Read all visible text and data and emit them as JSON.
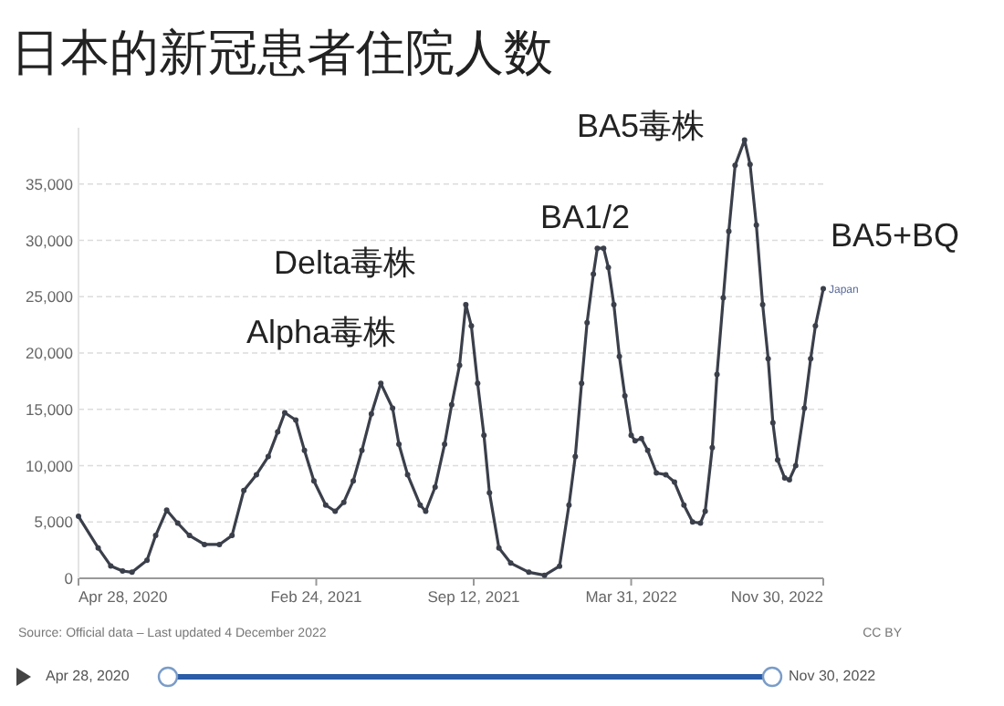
{
  "chart_data": {
    "type": "line",
    "title": "日本的新冠患者住院人数",
    "x": [
      "2020-04-28",
      "2020-05-23",
      "2020-06-08",
      "2020-06-23",
      "2020-07-05",
      "2020-07-24",
      "2020-08-04",
      "2020-08-18",
      "2020-09-01",
      "2020-09-16",
      "2020-10-05",
      "2020-10-24",
      "2020-11-09",
      "2020-11-24",
      "2020-12-10",
      "2020-12-25",
      "2021-01-06",
      "2021-01-15",
      "2021-01-29",
      "2021-02-09",
      "2021-02-21",
      "2021-03-08",
      "2021-03-20",
      "2021-03-31",
      "2021-04-12",
      "2021-04-23",
      "2021-05-05",
      "2021-05-17",
      "2021-06-01",
      "2021-06-09",
      "2021-06-20",
      "2021-07-06",
      "2021-07-13",
      "2021-07-25",
      "2021-08-06",
      "2021-08-15",
      "2021-08-25",
      "2021-09-02",
      "2021-09-09",
      "2021-09-17",
      "2021-09-25",
      "2021-10-02",
      "2021-10-14",
      "2021-10-29",
      "2021-11-21",
      "2021-12-11",
      "2021-12-30",
      "2022-01-11",
      "2022-01-19",
      "2022-01-27",
      "2022-02-03",
      "2022-02-11",
      "2022-02-16",
      "2022-02-24",
      "2022-03-02",
      "2022-03-09",
      "2022-03-16",
      "2022-03-23",
      "2022-03-31",
      "2022-04-05",
      "2022-04-13",
      "2022-04-21",
      "2022-05-02",
      "2022-05-14",
      "2022-05-25",
      "2022-06-06",
      "2022-06-17",
      "2022-06-27",
      "2022-07-03",
      "2022-07-12",
      "2022-07-18",
      "2022-07-26",
      "2022-08-02",
      "2022-08-10",
      "2022-08-22",
      "2022-08-29",
      "2022-09-06",
      "2022-09-14",
      "2022-09-21",
      "2022-09-27",
      "2022-10-03",
      "2022-10-12",
      "2022-10-18",
      "2022-10-26",
      "2022-11-06",
      "2022-11-14",
      "2022-11-20",
      "2022-11-30"
    ],
    "series": [
      {
        "name": "Japan",
        "color": "#3a3f4a",
        "values": [
          5500,
          2700,
          1100,
          650,
          540,
          1600,
          3800,
          6050,
          4900,
          3800,
          3000,
          3000,
          3800,
          7800,
          9200,
          10800,
          13000,
          14700,
          14050,
          11350,
          8650,
          6500,
          5950,
          6750,
          8650,
          11350,
          14600,
          17300,
          15100,
          11900,
          9200,
          6500,
          5950,
          8100,
          11900,
          15400,
          18900,
          24300,
          22400,
          17300,
          12700,
          7600,
          2700,
          1350,
          540,
          270,
          1080,
          6490,
          10800,
          17300,
          22700,
          27000,
          29300,
          29300,
          27600,
          24300,
          19700,
          16200,
          12700,
          12200,
          12400,
          11350,
          9350,
          9200,
          8540,
          6500,
          5000,
          4900,
          5950,
          11600,
          18100,
          24900,
          30800,
          36650,
          38900,
          36750,
          31350,
          24300,
          19500,
          13800,
          10500,
          8900,
          8750,
          10000,
          15100,
          19500,
          22400,
          25700
        ]
      }
    ],
    "xlim": [
      "2020-04-28",
      "2022-11-30"
    ],
    "xticks": [
      {
        "value": "2020-04-28",
        "label": "Apr 28, 2020"
      },
      {
        "value": "2021-02-24",
        "label": "Feb 24, 2021"
      },
      {
        "value": "2021-09-12",
        "label": "Sep 12, 2021"
      },
      {
        "value": "2022-03-31",
        "label": "Mar 31, 2022"
      },
      {
        "value": "2022-11-30",
        "label": "Nov 30, 2022"
      }
    ],
    "ylim": [
      0,
      40000
    ],
    "yticks": [
      {
        "value": 0,
        "label": "0"
      },
      {
        "value": 5000,
        "label": "5,000"
      },
      {
        "value": 10000,
        "label": "10,000"
      },
      {
        "value": 15000,
        "label": "15,000"
      },
      {
        "value": 20000,
        "label": "20,000"
      },
      {
        "value": 25000,
        "label": "25,000"
      },
      {
        "value": 30000,
        "label": "30,000"
      },
      {
        "value": 35000,
        "label": "35,000"
      }
    ],
    "grid": "y",
    "marker": "circle",
    "line_style": "solid",
    "annotations": [
      "Alpha毒株",
      "Delta毒株",
      "BA1/2",
      "BA5毒株",
      "BA5+BQ",
      "Source: Official data – Last updated 4 December 2022",
      "CC BY",
      "Apr 28, 2020",
      "Nov 30, 2022"
    ]
  }
}
